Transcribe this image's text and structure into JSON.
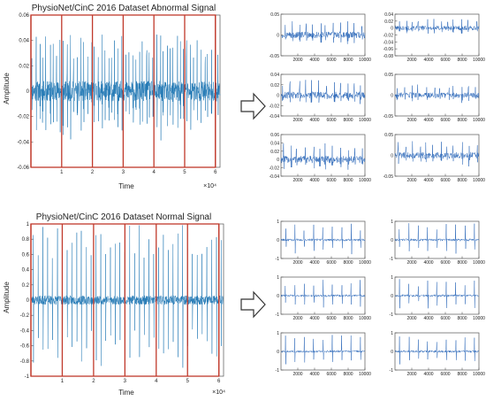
{
  "chart_data": [
    {
      "type": "line",
      "title": "PhysioNet/CinC 2016  Dataset Abnormal Signal",
      "xlabel": "Time",
      "ylabel": "Amplitude",
      "x_multiplier": "×10⁴",
      "xlim": [
        0,
        6.15
      ],
      "ylim": [
        -0.06,
        0.06
      ],
      "xticks": [
        "1",
        "2",
        "3",
        "4",
        "5",
        "6"
      ],
      "yticks": [
        "-0.06",
        "-0.04",
        "-0.02",
        "0",
        "0.02",
        "0.04",
        "0.06"
      ],
      "segment_boundaries": [
        0,
        1,
        2,
        3,
        4,
        5,
        6
      ],
      "signal": {
        "kind": "abnormal",
        "baseline_noise": 0.008,
        "peak_amplitude": 0.045,
        "trough_amplitude": -0.04,
        "beats": 55
      },
      "color": "#1f77b4",
      "segment_color": "#c0392b"
    },
    {
      "type": "line",
      "title": "PhysioNet/CinC 2016  Dataset Normal Signal",
      "xlabel": "Time",
      "ylabel": "Amplitude",
      "x_multiplier": "×10⁴",
      "xlim": [
        0,
        6.15
      ],
      "ylim": [
        -1,
        1
      ],
      "xticks": [
        "1",
        "2",
        "3",
        "4",
        "5",
        "6"
      ],
      "yticks": [
        "-1",
        "-0.8",
        "-0.6",
        "-0.4",
        "-0.2",
        "0",
        "0.2",
        "0.4",
        "0.6",
        "0.8",
        "1"
      ],
      "segment_boundaries": [
        0,
        1,
        2,
        3,
        4,
        5,
        6
      ],
      "signal": {
        "kind": "normal",
        "baseline_noise": 0.06,
        "peak_amplitude": 1.0,
        "trough_amplitude": -1.0,
        "beats": 40
      },
      "color": "#1f77b4",
      "segment_color": "#c0392b"
    }
  ],
  "segments_abnormal": [
    {
      "xlim": [
        0,
        10000
      ],
      "ylim": [
        -0.05,
        0.05
      ],
      "yticks": [
        "-0.05",
        "0",
        "0.05"
      ],
      "xticks": [
        "2000",
        "4000",
        "6000",
        "8000",
        "10000"
      ],
      "amp": 0.035
    },
    {
      "xlim": [
        0,
        10000
      ],
      "ylim": [
        -0.08,
        0.04
      ],
      "yticks": [
        "-0.08",
        "-0.06",
        "-0.04",
        "-0.02",
        "0",
        "0.02",
        "0.04"
      ],
      "xticks": [
        "2000",
        "4000",
        "6000",
        "8000",
        "10000"
      ],
      "amp": 0.03
    },
    {
      "xlim": [
        0,
        10000
      ],
      "ylim": [
        -0.04,
        0.04
      ],
      "yticks": [
        "-0.04",
        "-0.02",
        "0",
        "0.02",
        "0.04"
      ],
      "xticks": [
        "2000",
        "4000",
        "6000",
        "8000",
        "10000"
      ],
      "amp": 0.03
    },
    {
      "xlim": [
        0,
        10000
      ],
      "ylim": [
        -0.05,
        0.05
      ],
      "yticks": [
        "-0.05",
        "0",
        "0.05"
      ],
      "xticks": [
        "2000",
        "4000",
        "6000",
        "8000",
        "10000"
      ],
      "amp": 0.03
    },
    {
      "xlim": [
        0,
        10000
      ],
      "ylim": [
        -0.04,
        0.06
      ],
      "yticks": [
        "-0.04",
        "-0.02",
        "0",
        "0.02",
        "0.04",
        "0.06"
      ],
      "xticks": [
        "2000",
        "4000",
        "6000",
        "8000",
        "10000"
      ],
      "amp": 0.04
    },
    {
      "xlim": [
        0,
        10000
      ],
      "ylim": [
        -0.05,
        0.05
      ],
      "yticks": [
        "-0.05",
        "0",
        "0.05"
      ],
      "xticks": [
        "2000",
        "4000",
        "6000",
        "8000",
        "10000"
      ],
      "amp": 0.035
    }
  ],
  "segments_normal": [
    {
      "xlim": [
        0,
        10000
      ],
      "ylim": [
        -1,
        1
      ],
      "yticks": [
        "-1",
        "0",
        "1"
      ],
      "xticks": [
        "2000",
        "4000",
        "6000",
        "8000",
        "10000"
      ],
      "amp": 0.9
    },
    {
      "xlim": [
        0,
        10000
      ],
      "ylim": [
        -1,
        1
      ],
      "yticks": [
        "-1",
        "0",
        "1"
      ],
      "xticks": [
        "2000",
        "4000",
        "6000",
        "8000",
        "10000"
      ],
      "amp": 0.9
    },
    {
      "xlim": [
        0,
        10000
      ],
      "ylim": [
        -1,
        1
      ],
      "yticks": [
        "-1",
        "0",
        "1"
      ],
      "xticks": [
        "2000",
        "4000",
        "6000",
        "8000",
        "10000"
      ],
      "amp": 0.9
    },
    {
      "xlim": [
        0,
        10000
      ],
      "ylim": [
        -1,
        1
      ],
      "yticks": [
        "-1",
        "0",
        "1"
      ],
      "xticks": [
        "2000",
        "4000",
        "6000",
        "8000",
        "10000"
      ],
      "amp": 0.9
    },
    {
      "xlim": [
        0,
        10000
      ],
      "ylim": [
        -1,
        1
      ],
      "yticks": [
        "-1",
        "0",
        "1"
      ],
      "xticks": [
        "2000",
        "4000",
        "6000",
        "8000",
        "10000"
      ],
      "amp": 0.9
    },
    {
      "xlim": [
        0,
        10000
      ],
      "ylim": [
        -1,
        1
      ],
      "yticks": [
        "-1",
        "0",
        "1"
      ],
      "xticks": [
        "2000",
        "4000",
        "6000",
        "8000",
        "10000"
      ],
      "amp": 0.9
    }
  ]
}
